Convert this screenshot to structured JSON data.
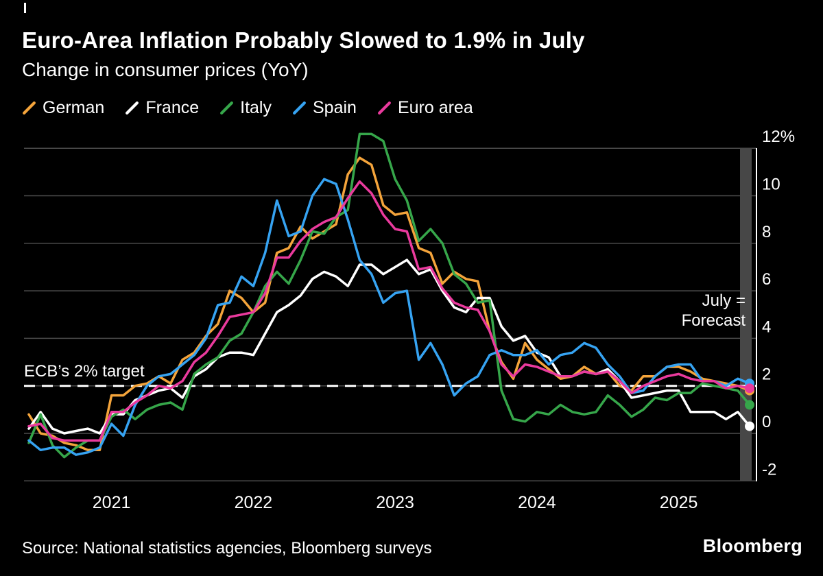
{
  "header": {
    "title": "Euro-Area Inflation Probably Slowed to 1.9% in July",
    "subtitle": "Change in consumer prices (YoY)"
  },
  "legend": [
    {
      "label": "German",
      "color": "#F4A43B"
    },
    {
      "label": "France",
      "color": "#FFFFFF"
    },
    {
      "label": "Italy",
      "color": "#36A64A"
    },
    {
      "label": "Spain",
      "color": "#36A3F2"
    },
    {
      "label": "Euro area",
      "color": "#EA3A9D"
    }
  ],
  "annotations": {
    "target_label": "ECB’s 2% target",
    "forecast_line1": "July =",
    "forecast_line2": "Forecast"
  },
  "footer": {
    "source": "Source: National statistics agencies, Bloomberg surveys",
    "brand": "Bloomberg"
  },
  "chart_data": {
    "type": "line",
    "title": "Euro-Area Inflation Probably Slowed to 1.9% in July",
    "subtitle": "Change in consumer prices (YoY)",
    "x_start": "2020-06",
    "x_end": "2025-07",
    "frequency": "monthly",
    "x_tick_labels": [
      "2021",
      "2022",
      "2023",
      "2024",
      "2025"
    ],
    "x_tick_month_index": [
      7,
      19,
      31,
      43,
      55
    ],
    "y_ticks": [
      12,
      10,
      8,
      6,
      4,
      2,
      0,
      -2
    ],
    "y_tick_labels": [
      "12%",
      "10",
      "8",
      "6",
      "4",
      "2",
      "0",
      "-2"
    ],
    "ylim": [
      -2.6,
      12.8
    ],
    "grid_color": "#4d4d4d",
    "text_color": "#ffffff",
    "reference_line": {
      "value": 2,
      "label": "ECB’s 2% target",
      "style": "dashed",
      "color": "#ffffff"
    },
    "forecast_band": {
      "label": "July = Forecast",
      "color": "#474747"
    },
    "legend_position": "top",
    "series": [
      {
        "name": "German",
        "color": "#F4A43B",
        "values": [
          0.8,
          0.0,
          -0.1,
          -0.4,
          -0.5,
          -0.7,
          -0.7,
          1.6,
          1.6,
          2.0,
          2.1,
          2.4,
          2.1,
          3.1,
          3.4,
          4.1,
          4.6,
          6.0,
          5.7,
          5.1,
          5.5,
          7.6,
          7.8,
          8.7,
          8.2,
          8.5,
          8.8,
          10.9,
          11.6,
          11.3,
          9.6,
          9.2,
          9.3,
          7.8,
          7.6,
          6.3,
          6.8,
          6.5,
          6.4,
          4.3,
          3.0,
          2.3,
          3.8,
          3.1,
          2.7,
          2.3,
          2.4,
          2.8,
          2.5,
          2.6,
          2.0,
          1.8,
          2.4,
          2.4,
          2.8,
          2.8,
          2.6,
          2.3,
          2.2,
          2.1,
          2.0,
          1.8
        ]
      },
      {
        "name": "France",
        "color": "#FFFFFF",
        "values": [
          0.2,
          0.9,
          0.2,
          0.0,
          0.1,
          0.2,
          0.0,
          0.8,
          0.8,
          1.4,
          1.6,
          1.8,
          1.9,
          1.5,
          2.4,
          2.7,
          3.2,
          3.4,
          3.4,
          3.3,
          4.2,
          5.1,
          5.4,
          5.8,
          6.5,
          6.8,
          6.6,
          6.2,
          7.1,
          7.1,
          6.7,
          7.0,
          7.3,
          6.7,
          6.9,
          6.0,
          5.3,
          5.1,
          5.7,
          5.7,
          4.5,
          3.9,
          4.1,
          3.4,
          3.2,
          2.4,
          2.4,
          2.6,
          2.5,
          2.7,
          2.2,
          1.5,
          1.6,
          1.7,
          1.8,
          1.8,
          0.9,
          0.9,
          0.9,
          0.6,
          0.9,
          0.3
        ]
      },
      {
        "name": "Italy",
        "color": "#36A64A",
        "values": [
          -0.4,
          0.8,
          -0.5,
          -1.0,
          -0.6,
          -0.3,
          -0.3,
          0.7,
          1.0,
          0.6,
          1.0,
          1.2,
          1.3,
          1.0,
          2.5,
          2.9,
          3.2,
          3.9,
          4.2,
          5.1,
          6.2,
          6.8,
          6.3,
          7.3,
          8.5,
          8.4,
          9.1,
          9.4,
          12.6,
          12.6,
          12.3,
          10.7,
          9.8,
          8.1,
          8.6,
          8.0,
          6.7,
          6.3,
          5.5,
          5.6,
          1.8,
          0.6,
          0.5,
          0.9,
          0.8,
          1.2,
          0.9,
          0.8,
          0.9,
          1.6,
          1.2,
          0.7,
          1.0,
          1.5,
          1.4,
          1.7,
          1.7,
          2.1,
          2.0,
          1.9,
          1.8,
          1.2
        ]
      },
      {
        "name": "Spain",
        "color": "#36A3F2",
        "values": [
          -0.3,
          -0.7,
          -0.6,
          -0.6,
          -0.9,
          -0.8,
          -0.6,
          0.4,
          -0.1,
          1.2,
          2.0,
          2.4,
          2.5,
          2.9,
          3.3,
          4.0,
          5.4,
          5.5,
          6.6,
          6.2,
          7.6,
          9.8,
          8.3,
          8.5,
          10.0,
          10.7,
          10.5,
          9.0,
          7.3,
          6.7,
          5.5,
          5.9,
          6.0,
          3.1,
          3.8,
          2.9,
          1.6,
          2.1,
          2.4,
          3.3,
          3.5,
          3.3,
          3.3,
          3.5,
          2.9,
          3.3,
          3.4,
          3.8,
          3.6,
          2.9,
          2.4,
          1.7,
          1.8,
          2.4,
          2.8,
          2.9,
          2.9,
          2.2,
          2.2,
          2.0,
          2.3,
          2.1
        ]
      },
      {
        "name": "Euro area",
        "color": "#EA3A9D",
        "values": [
          0.3,
          0.4,
          -0.2,
          -0.3,
          -0.3,
          -0.3,
          -0.3,
          0.9,
          0.9,
          1.3,
          1.6,
          2.0,
          1.9,
          2.2,
          3.0,
          3.4,
          4.1,
          4.9,
          5.0,
          5.1,
          5.9,
          7.4,
          7.4,
          8.1,
          8.6,
          8.9,
          9.1,
          9.9,
          10.6,
          10.1,
          9.2,
          8.6,
          8.5,
          6.9,
          7.0,
          6.1,
          5.5,
          5.3,
          5.2,
          4.3,
          2.9,
          2.4,
          2.9,
          2.8,
          2.6,
          2.4,
          2.4,
          2.6,
          2.5,
          2.6,
          2.2,
          1.7,
          2.0,
          2.2,
          2.4,
          2.5,
          2.3,
          2.2,
          2.2,
          1.9,
          2.0,
          1.9
        ]
      }
    ]
  }
}
